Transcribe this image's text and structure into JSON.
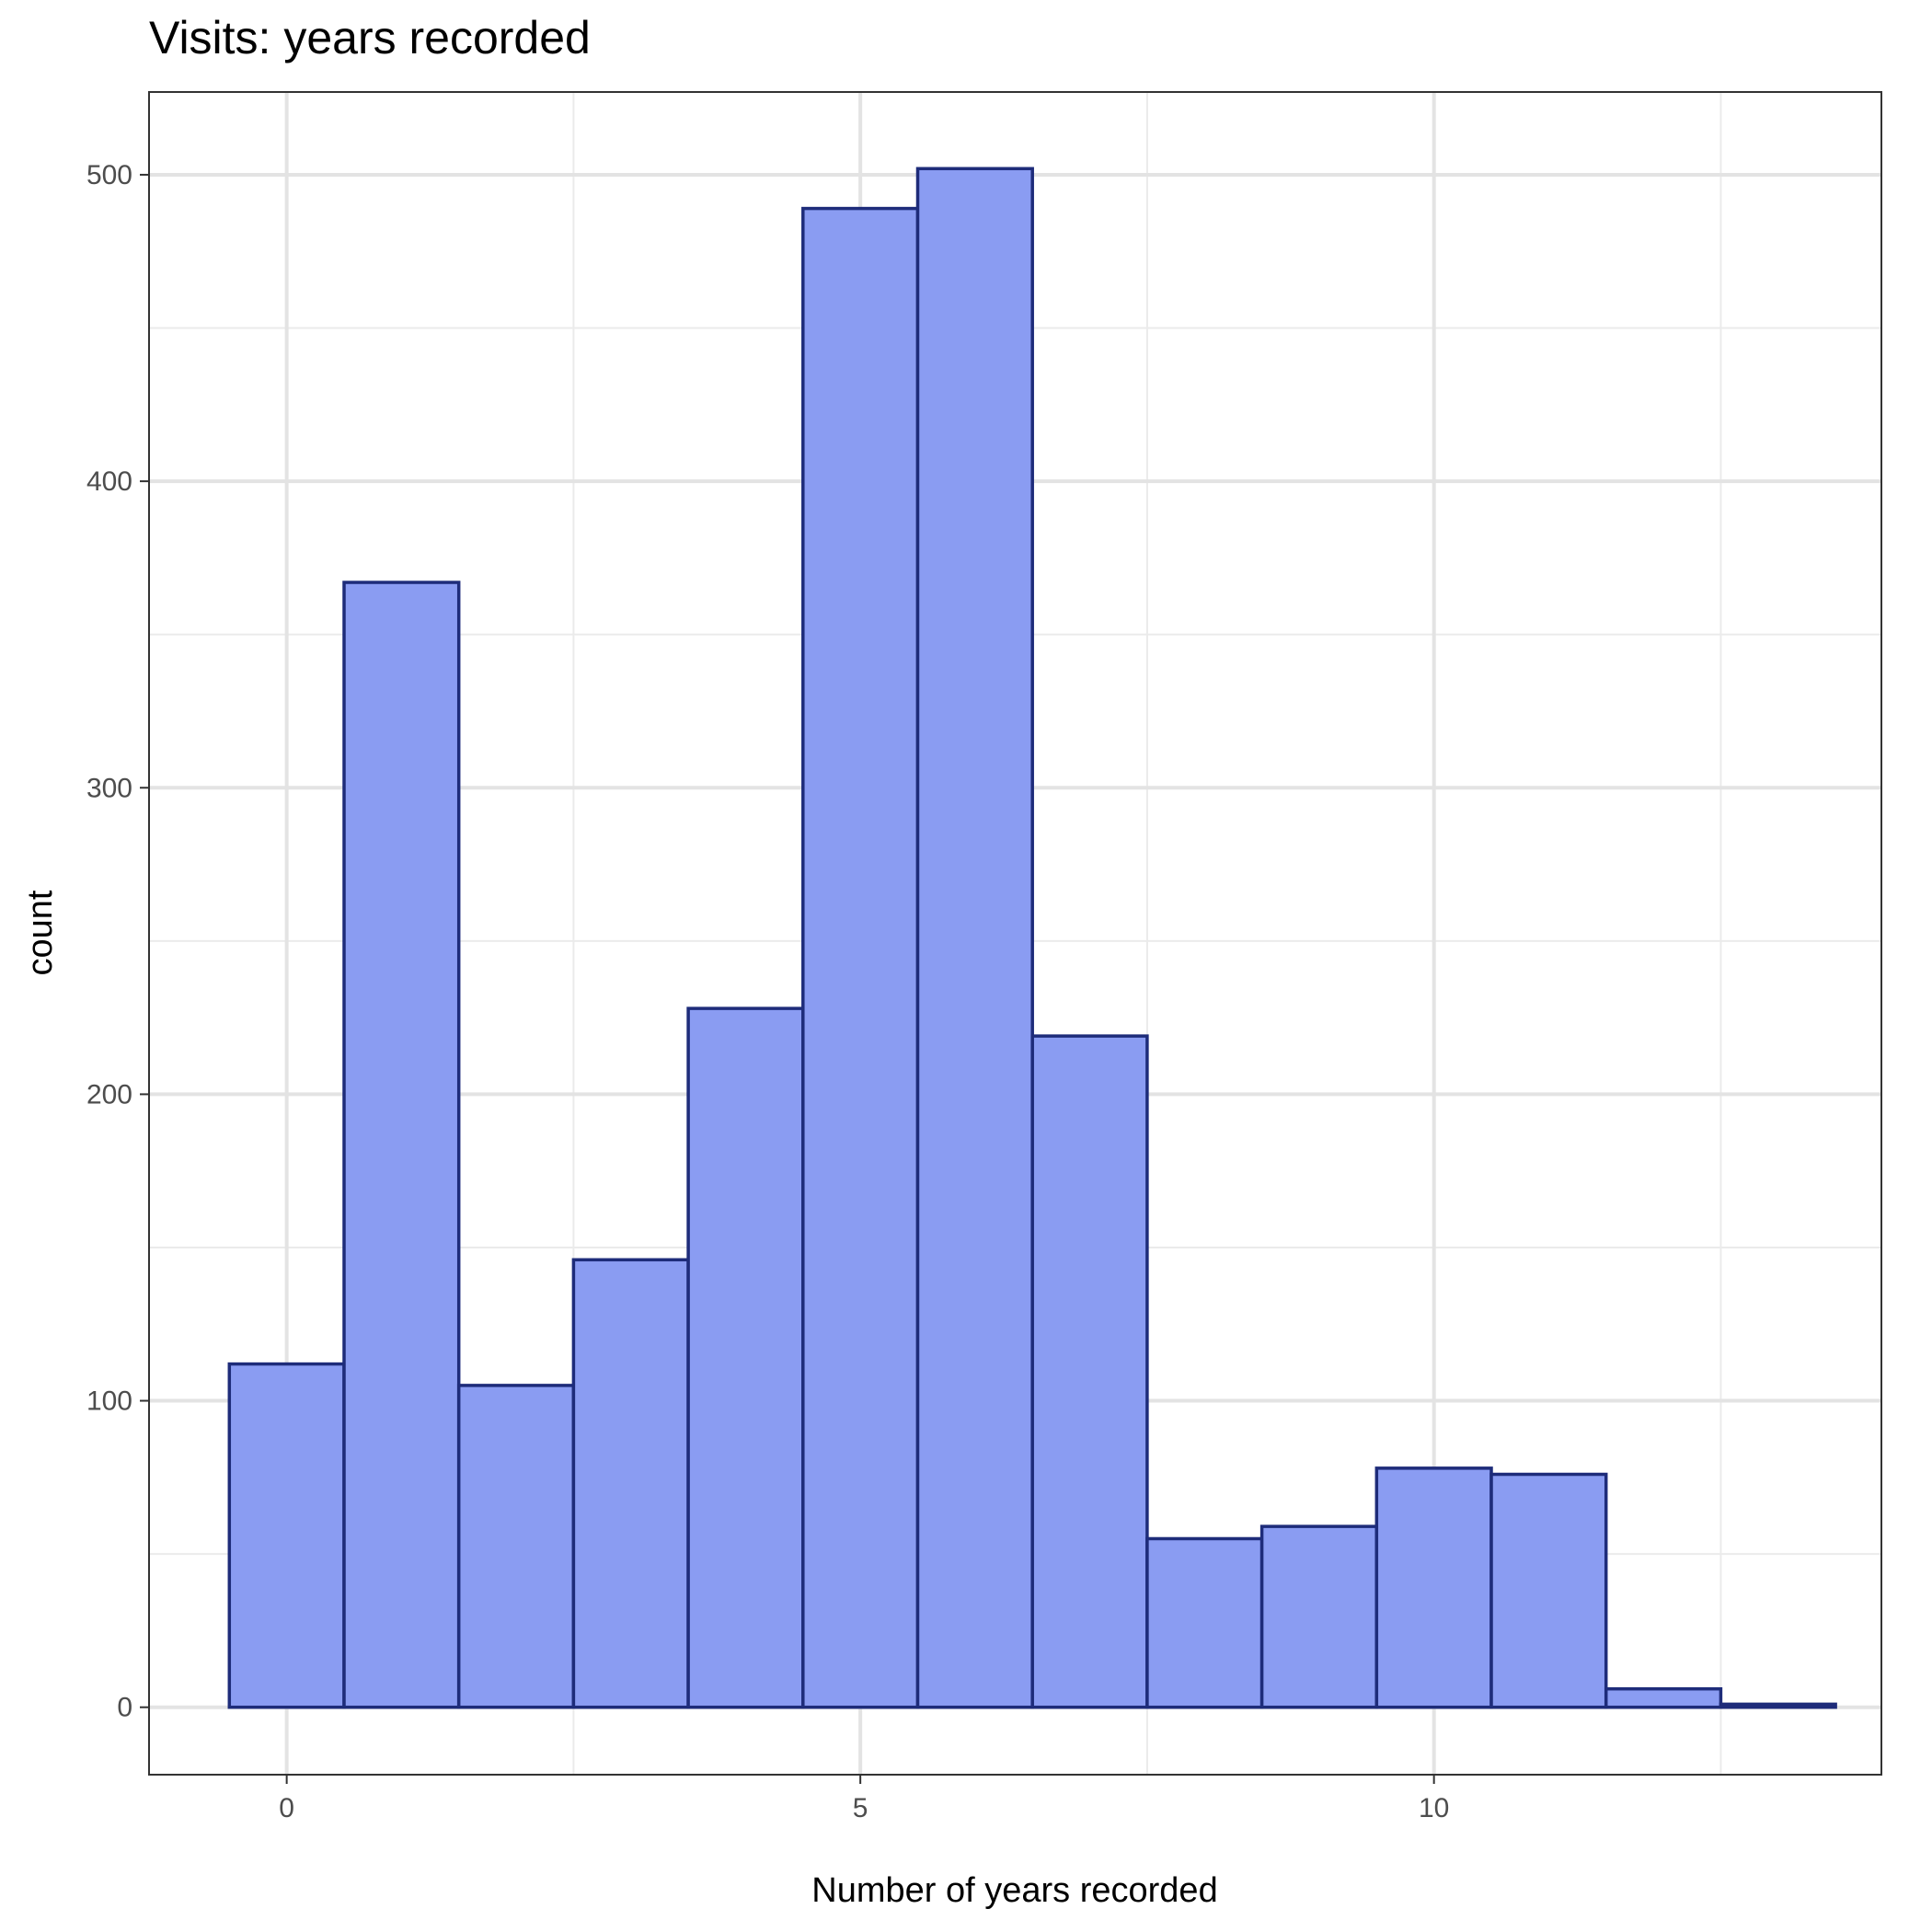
{
  "chart_data": {
    "type": "bar",
    "title": "Visits: years recorded",
    "xlabel": "Number of years recorded",
    "ylabel": "count",
    "bin_width": 1,
    "categories": [
      0,
      1,
      2,
      3,
      4,
      5,
      6,
      7,
      8,
      9,
      10,
      11,
      12,
      13
    ],
    "values": [
      112,
      367,
      105,
      146,
      228,
      489,
      502,
      219,
      55,
      59,
      78,
      76,
      6,
      1
    ],
    "xlim": [
      -1.2,
      13.9
    ],
    "ylim": [
      -22,
      527
    ],
    "x_ticks": [
      0,
      5,
      10
    ],
    "y_ticks": [
      0,
      100,
      200,
      300,
      400,
      500
    ],
    "x_minor_ticks": [
      2.5,
      7.5,
      12.5
    ],
    "y_minor_ticks": [
      50,
      150,
      250,
      350,
      450
    ],
    "grid": true,
    "fill_color": "#8A9CF2",
    "edge_color": "#1E2C7A"
  }
}
